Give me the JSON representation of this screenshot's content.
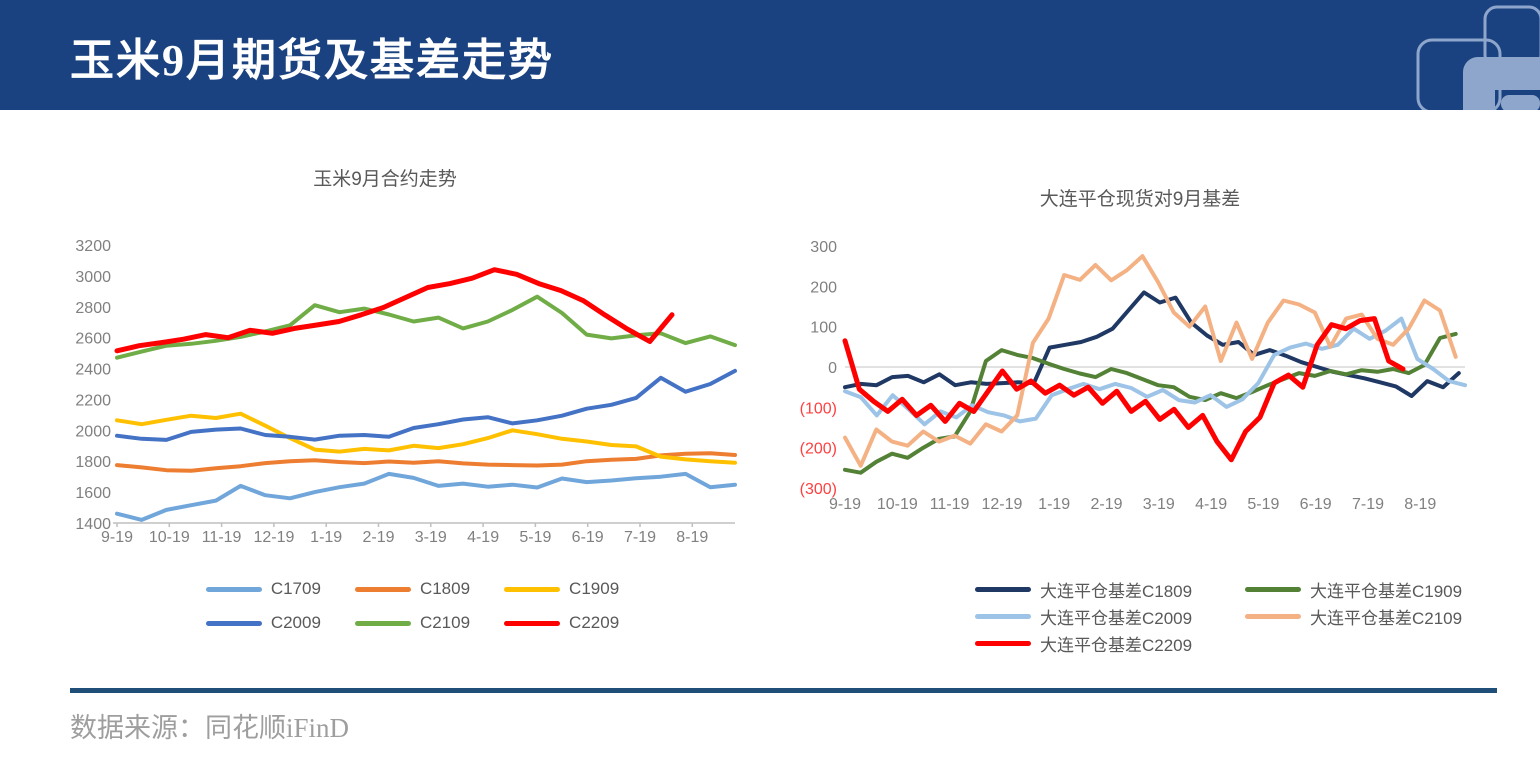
{
  "header": {
    "title": "玉米9月期货及基差走势",
    "bg_color": "#1B4280",
    "logo_color": "#8EA6CB"
  },
  "footer": {
    "source_label": "数据来源：同花顺iFinD",
    "divider_color": "#1F4E79"
  },
  "chart_data": [
    {
      "type": "line",
      "title": "玉米9月合约走势",
      "x_tick_labels": [
        "9-19",
        "10-19",
        "11-19",
        "12-19",
        "1-19",
        "2-19",
        "3-19",
        "4-19",
        "5-19",
        "6-19",
        "7-19",
        "8-19"
      ],
      "y_tick_labels": [
        "3200",
        "3000",
        "2800",
        "2600",
        "2400",
        "2200",
        "2000",
        "1800",
        "1600",
        "1400"
      ],
      "y_tick_values": [
        3200,
        3000,
        2800,
        2600,
        2400,
        2200,
        2000,
        1800,
        1600,
        1400
      ],
      "ylim": [
        1400,
        3200
      ],
      "tick_color": "#808080",
      "grid": false,
      "legend_position": "bottom",
      "series": [
        {
          "name": "C1709",
          "color": "#71A6DB",
          "x_end": 1.0,
          "values": [
            1460,
            1420,
            1485,
            1515,
            1545,
            1640,
            1580,
            1560,
            1600,
            1632,
            1655,
            1718,
            1692,
            1640,
            1655,
            1635,
            1648,
            1630,
            1688,
            1665,
            1675,
            1690,
            1700,
            1718,
            1632,
            1648
          ]
        },
        {
          "name": "C1809",
          "color": "#ED7D31",
          "x_end": 1.0,
          "values": [
            1775,
            1760,
            1742,
            1738,
            1755,
            1768,
            1788,
            1800,
            1806,
            1795,
            1788,
            1798,
            1790,
            1800,
            1786,
            1778,
            1775,
            1772,
            1778,
            1800,
            1810,
            1815,
            1838,
            1848,
            1852,
            1840
          ]
        },
        {
          "name": "C1909",
          "color": "#FFC000",
          "x_end": 1.0,
          "values": [
            2065,
            2040,
            2068,
            2095,
            2080,
            2108,
            2030,
            1950,
            1875,
            1862,
            1880,
            1870,
            1900,
            1885,
            1910,
            1950,
            2000,
            1975,
            1945,
            1928,
            1905,
            1896,
            1830,
            1812,
            1800,
            1790
          ]
        },
        {
          "name": "C2009",
          "color": "#4472C4",
          "x_end": 1.0,
          "values": [
            1965,
            1945,
            1938,
            1990,
            2005,
            2012,
            1970,
            1958,
            1940,
            1965,
            1970,
            1958,
            2015,
            2040,
            2070,
            2085,
            2045,
            2065,
            2095,
            2140,
            2165,
            2210,
            2340,
            2250,
            2300,
            2385
          ]
        },
        {
          "name": "C2109",
          "color": "#70AD47",
          "x_end": 1.0,
          "values": [
            2470,
            2510,
            2548,
            2560,
            2580,
            2605,
            2640,
            2680,
            2810,
            2765,
            2788,
            2750,
            2705,
            2730,
            2660,
            2705,
            2780,
            2865,
            2760,
            2620,
            2595,
            2615,
            2628,
            2565,
            2608,
            2552
          ]
        },
        {
          "name": "C2209",
          "color": "#FF0000",
          "x_end": 0.898,
          "width": 5,
          "values": [
            2515,
            2548,
            2568,
            2590,
            2620,
            2600,
            2648,
            2628,
            2660,
            2682,
            2705,
            2748,
            2795,
            2860,
            2925,
            2950,
            2985,
            3040,
            3010,
            2950,
            2905,
            2840,
            2745,
            2655,
            2575,
            2748
          ]
        }
      ]
    },
    {
      "type": "line",
      "title": "大连平仓现货对9月基差",
      "x_tick_labels": [
        "9-19",
        "10-19",
        "11-19",
        "12-19",
        "1-19",
        "2-19",
        "3-19",
        "4-19",
        "5-19",
        "6-19",
        "7-19",
        "8-19"
      ],
      "y_tick_labels": [
        "300",
        "200",
        "100",
        "0",
        "(100)",
        "(200)",
        "(300)"
      ],
      "y_tick_values": [
        300,
        200,
        100,
        0,
        -100,
        -200,
        -300
      ],
      "ylim": [
        -300,
        300
      ],
      "tick_color": "#808080",
      "negative_tick_color": "#FF4040",
      "grid": "zero-line",
      "legend_position": "bottom",
      "series": [
        {
          "name": "大连平仓基差C1809",
          "color": "#1F3864",
          "x_end": 0.99,
          "values": [
            -50,
            -42,
            -45,
            -25,
            -22,
            -38,
            -18,
            -45,
            -38,
            -42,
            -40,
            -38,
            -40,
            48,
            55,
            62,
            75,
            95,
            140,
            185,
            160,
            172,
            110,
            78,
            55,
            62,
            30,
            42,
            28,
            12,
            0,
            -12,
            -20,
            -28,
            -38,
            -48,
            -72,
            -35,
            -50,
            -15
          ]
        },
        {
          "name": "大连平仓基差C1909",
          "color": "#538135",
          "x_end": 0.985,
          "values": [
            -255,
            -262,
            -235,
            -215,
            -225,
            -200,
            -178,
            -172,
            -110,
            15,
            42,
            30,
            22,
            8,
            -5,
            -16,
            -25,
            -5,
            -15,
            -30,
            -45,
            -50,
            -74,
            -82,
            -65,
            -77,
            -62,
            -45,
            -30,
            -15,
            -22,
            -10,
            -18,
            -8,
            -12,
            -5,
            -15,
            5,
            72,
            82
          ]
        },
        {
          "name": "大连平仓基差C2009",
          "color": "#9DC3E6",
          "x_end": 1.0,
          "values": [
            -60,
            -75,
            -120,
            -70,
            -105,
            -142,
            -110,
            -125,
            -95,
            -112,
            -120,
            -135,
            -128,
            -70,
            -55,
            -42,
            -55,
            -42,
            -52,
            -74,
            -57,
            -82,
            -88,
            -70,
            -99,
            -80,
            -40,
            30,
            48,
            58,
            45,
            55,
            95,
            70,
            90,
            120,
            20,
            -5,
            -35,
            -45
          ]
        },
        {
          "name": "大连平仓基差C2109",
          "color": "#F4B183",
          "x_end": 0.985,
          "values": [
            -175,
            -245,
            -155,
            -185,
            -195,
            -160,
            -185,
            -170,
            -190,
            -142,
            -160,
            -120,
            60,
            120,
            228,
            216,
            253,
            215,
            240,
            275,
            210,
            135,
            100,
            150,
            15,
            110,
            20,
            110,
            165,
            155,
            135,
            50,
            120,
            130,
            70,
            55,
            95,
            165,
            140,
            25
          ]
        },
        {
          "name": "大连平仓基差C2209",
          "color": "#FF0000",
          "x_end": 0.9,
          "width": 5,
          "values": [
            65,
            -55,
            -85,
            -110,
            -80,
            -120,
            -95,
            -135,
            -90,
            -110,
            -60,
            -10,
            -55,
            -35,
            -65,
            -45,
            -70,
            -50,
            -90,
            -60,
            -110,
            -85,
            -130,
            -105,
            -150,
            -120,
            -185,
            -230,
            -160,
            -125,
            -40,
            -20,
            -50,
            55,
            105,
            95,
            115,
            120,
            15,
            -5
          ]
        }
      ]
    }
  ]
}
